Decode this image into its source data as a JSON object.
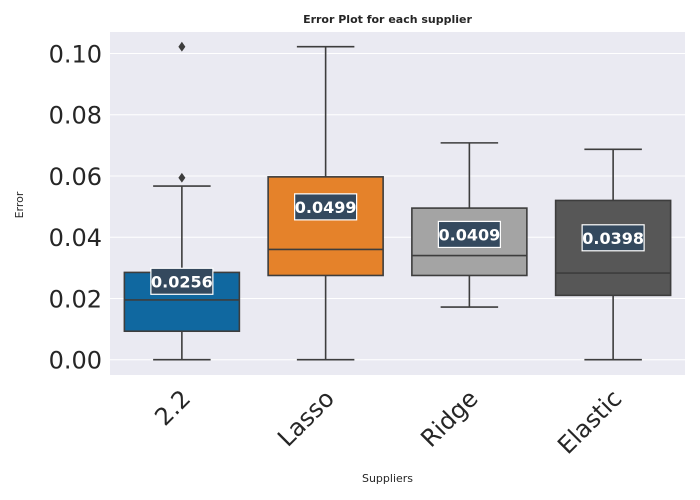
{
  "chart_data": {
    "type": "box",
    "title": "Error Plot for each supplier",
    "xlabel": "Suppliers",
    "ylabel": "Error",
    "ylim": [
      -0.005,
      0.107
    ],
    "yticks": [
      0.0,
      0.02,
      0.04,
      0.06,
      0.08,
      0.1
    ],
    "ytick_labels": [
      "0.00",
      "0.02",
      "0.04",
      "0.06",
      "0.08",
      "0.10"
    ],
    "grid": true,
    "categories": [
      "2.2",
      "Lasso",
      "Ridge",
      "Elastic"
    ],
    "boxes": [
      {
        "name": "2.2",
        "color": "#1068a0",
        "whisker_low": 0.0,
        "q1": 0.0093,
        "median": 0.0195,
        "q3": 0.0285,
        "whisker_high": 0.0567,
        "outliers": [
          0.0594,
          0.1022
        ],
        "mean_label": "0.0256",
        "mean": 0.0256
      },
      {
        "name": "Lasso",
        "color": "#e5822a",
        "whisker_low": 0.0,
        "q1": 0.0275,
        "median": 0.036,
        "q3": 0.0597,
        "whisker_high": 0.1022,
        "outliers": [],
        "mean_label": "0.0499",
        "mean": 0.0499
      },
      {
        "name": "Ridge",
        "color": "#a4a4a4",
        "whisker_low": 0.0172,
        "q1": 0.0275,
        "median": 0.034,
        "q3": 0.0495,
        "whisker_high": 0.0708,
        "outliers": [],
        "mean_label": "0.0409",
        "mean": 0.0409
      },
      {
        "name": "Elastic",
        "color": "#575757",
        "whisker_low": 0.0,
        "q1": 0.021,
        "median": 0.0283,
        "q3": 0.052,
        "whisker_high": 0.0687,
        "outliers": [],
        "mean_label": "0.0398",
        "mean": 0.0398
      }
    ],
    "colors": {
      "plot_background": "#eaeaf2",
      "grid": "#ffffff",
      "line": "#3d3d3d",
      "annotation_box": "#34495e"
    }
  }
}
